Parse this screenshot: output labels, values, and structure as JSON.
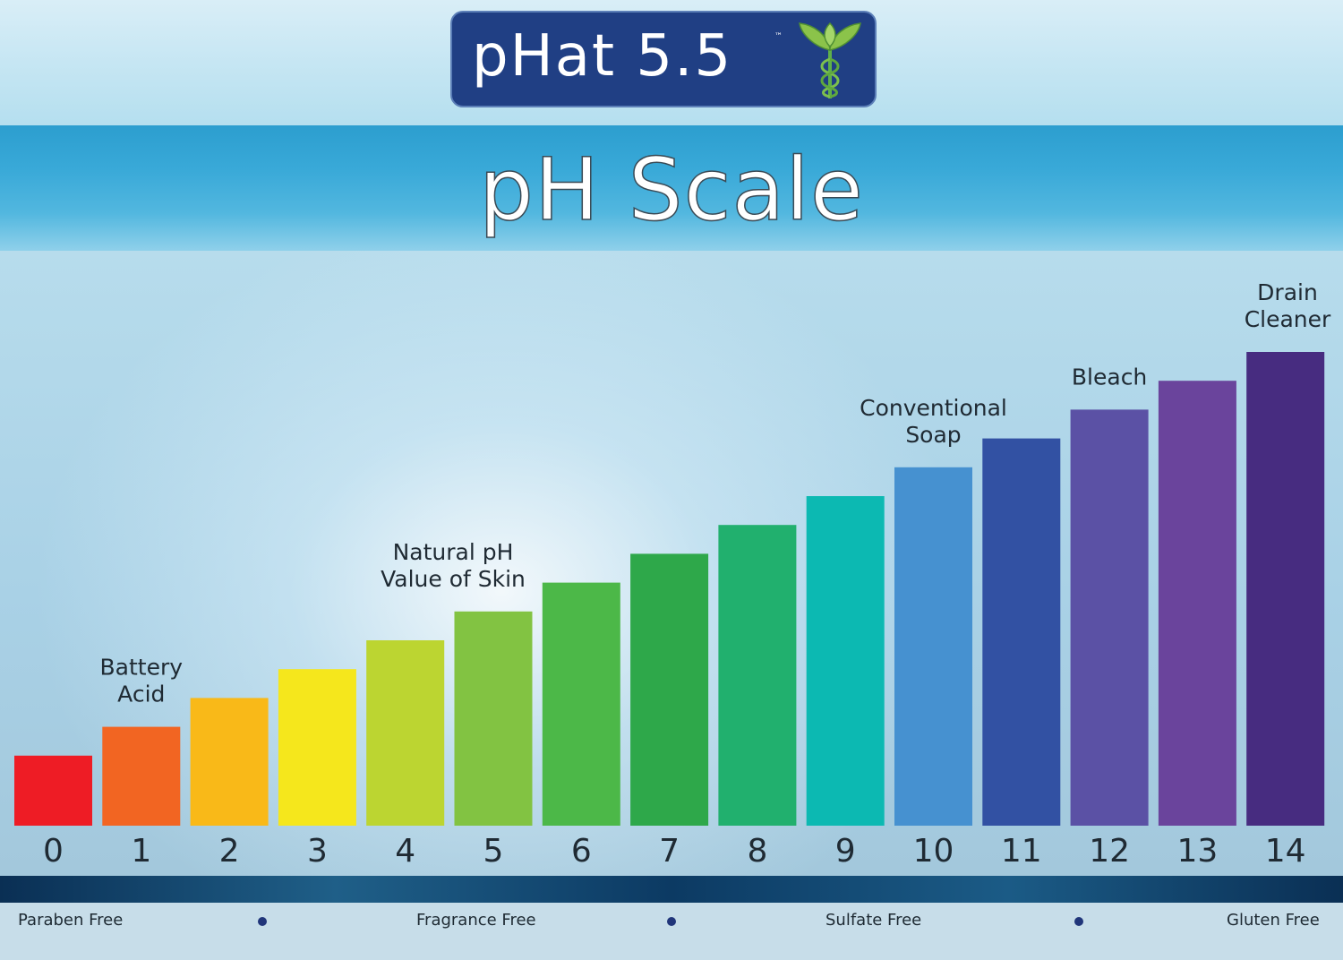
{
  "logo": {
    "text": "pHat 5.5",
    "tm": "™",
    "icon": "caduceus-leaf-icon"
  },
  "title": "pH Scale",
  "chart_data": {
    "type": "bar",
    "categories": [
      "0",
      "1",
      "2",
      "3",
      "4",
      "5",
      "6",
      "7",
      "8",
      "9",
      "10",
      "11",
      "12",
      "13",
      "14"
    ],
    "values": [
      1,
      2,
      3,
      4,
      5,
      6,
      7,
      8,
      9,
      10,
      11,
      12,
      13,
      14,
      15
    ],
    "ylim": [
      0,
      16
    ],
    "colors": [
      "#ee1c25",
      "#f26522",
      "#f9b918",
      "#f5e71c",
      "#bcd531",
      "#82c342",
      "#4cb848",
      "#2ea84a",
      "#21b06e",
      "#0cb9b2",
      "#4691d0",
      "#3251a3",
      "#5b51a5",
      "#6a449c",
      "#472c80"
    ],
    "annotations": [
      {
        "category": "1",
        "lines": [
          "Battery",
          "Acid"
        ]
      },
      {
        "category": "5",
        "lines": [
          "Natural pH",
          "Value of Skin"
        ]
      },
      {
        "category": "10",
        "lines": [
          "Conventional",
          "Soap"
        ]
      },
      {
        "category": "12",
        "lines": [
          "Bleach"
        ]
      },
      {
        "category": "14",
        "lines": [
          "Drain",
          "Cleaner"
        ]
      }
    ],
    "grid": false,
    "legend": "none"
  },
  "footer": {
    "items": [
      "Paraben Free",
      "Fragrance Free",
      "Sulfate Free",
      "Gluten Free"
    ],
    "separator_color": "#20357a"
  }
}
